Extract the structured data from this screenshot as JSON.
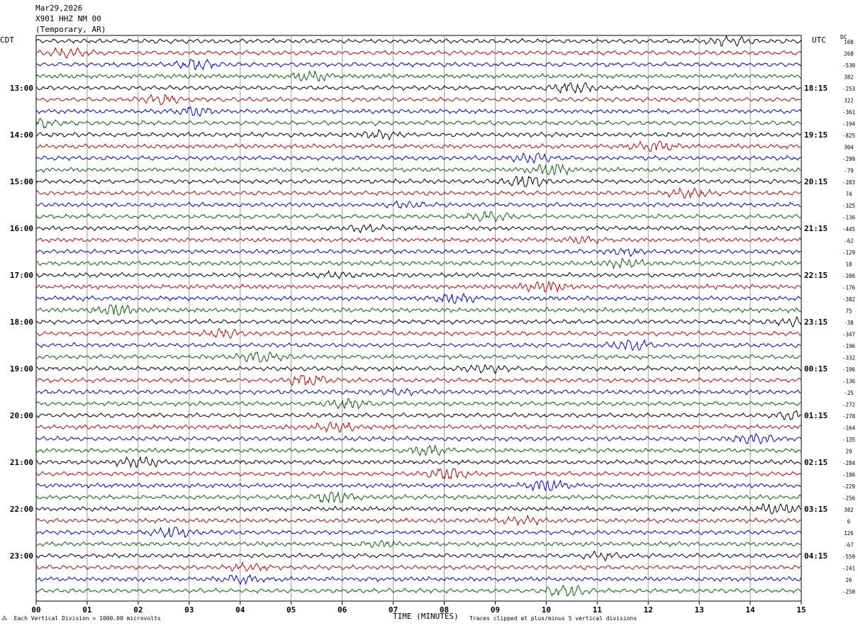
{
  "header": {
    "date": "Mar29,2026",
    "station": "X901 HHZ NM 00",
    "network": "(Temporary, AR)"
  },
  "left_tz": "CDT",
  "right_tz": "UTC",
  "dc_label": "DC",
  "footer": {
    "scale_note": "Each Vertical Division = 1000.00 microvolts",
    "xlabel": "TIME (MINUTES)",
    "clip_note": "Traces clipped at plus/minus 5 vertical divisions"
  },
  "colors": {
    "trace_cycle": [
      "#000000",
      "#cc0000",
      "#0000cc",
      "#006600"
    ],
    "grid": "#9a9a9a"
  },
  "chart_data": {
    "type": "line",
    "xlim": [
      0,
      15
    ],
    "x_ticks": [
      "00",
      "01",
      "02",
      "03",
      "04",
      "05",
      "06",
      "07",
      "08",
      "09",
      "10",
      "11",
      "12",
      "13",
      "14",
      "15"
    ],
    "left_hour_labels": [
      "13:00",
      "14:00",
      "15:00",
      "16:00",
      "17:00",
      "18:00",
      "19:00",
      "20:00",
      "21:00",
      "22:00",
      "23:00"
    ],
    "right_hour_labels": [
      "18:15",
      "19:15",
      "20:15",
      "21:15",
      "22:15",
      "23:15",
      "00:15",
      "01:15",
      "02:15",
      "03:15",
      "04:15"
    ],
    "trace_dc_offsets": [
      "160",
      "268",
      "-530",
      "382",
      "-253",
      "322",
      "-361",
      "-194",
      "-825",
      "304",
      "-299",
      "-79",
      "-283",
      "74",
      "-325",
      "-136",
      "-445",
      "-62",
      "-129",
      "18",
      "-206",
      "-176",
      "-382",
      "75",
      "-38",
      "-347",
      "-196",
      "-332",
      "-196",
      "-136",
      "-25",
      "-272",
      "-278",
      "-164",
      "-135",
      "29",
      "-284",
      "-186",
      "-229",
      "-256",
      "382",
      "6",
      "126",
      "-67",
      "-559",
      "-241",
      "26",
      "-250"
    ]
  }
}
